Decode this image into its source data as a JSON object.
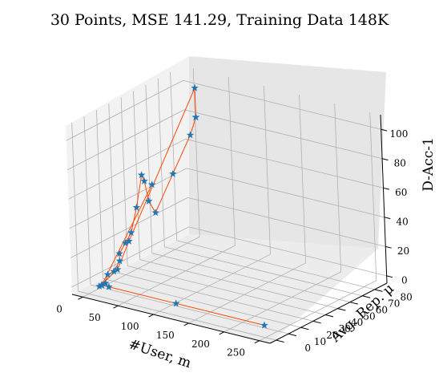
{
  "chart_data": {
    "type": "scatter",
    "projection": "3d",
    "title": "30 Points, MSE 141.29, Training Data 148K",
    "xlabel": "#User, m",
    "ylabel": "Avg. Rep. μ",
    "zlabel": "D-Acc-1",
    "xlim": [
      -15,
      265
    ],
    "ylim": [
      -5,
      90
    ],
    "zlim": [
      -5,
      110
    ],
    "x_ticks": [
      0,
      50,
      100,
      150,
      200,
      250
    ],
    "y_ticks": [
      0,
      10,
      20,
      30,
      40,
      50,
      60,
      70,
      80
    ],
    "z_ticks": [
      0,
      20,
      40,
      60,
      80,
      100
    ],
    "grid": true,
    "colors": {
      "points": "#1f77b4",
      "line": "#ff4500"
    },
    "marker": "star",
    "series": [
      {
        "x": [
          240,
          115,
          20,
          10,
          10,
          10,
          10,
          10,
          10,
          10,
          10,
          10,
          10,
          10,
          10,
          10,
          10,
          10,
          10,
          10,
          10,
          10,
          10,
          10,
          10,
          10,
          10,
          10,
          10,
          10
        ],
        "y": [
          5,
          5,
          5,
          5,
          5,
          3,
          18,
          28,
          85,
          85,
          85,
          80,
          65,
          50,
          45,
          42,
          40,
          35,
          30,
          25,
          20,
          20,
          15,
          10,
          8,
          5,
          5,
          5,
          5,
          48
        ],
        "z": [
          0,
          0,
          0,
          0,
          0,
          0,
          5,
          20,
          100,
          80,
          80,
          70,
          50,
          30,
          40,
          55,
          60,
          40,
          25,
          20,
          15,
          10,
          5,
          5,
          0,
          0,
          0,
          0,
          0,
          50
        ]
      }
    ]
  }
}
